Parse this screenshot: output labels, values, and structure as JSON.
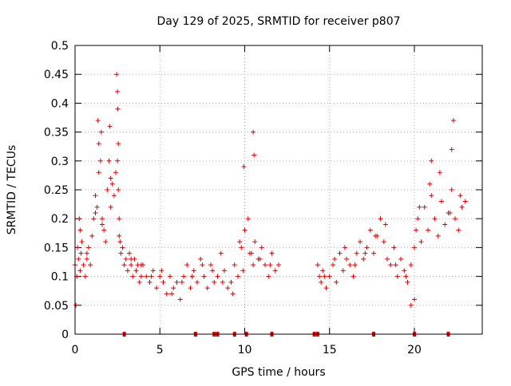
{
  "chart_data": {
    "type": "scatter",
    "title": "Day 129 of 2025, SRMTID for receiver p807",
    "xlabel": "GPS time / hours",
    "ylabel": "SRMTID / TECUs",
    "xlim": [
      0,
      24
    ],
    "ylim": [
      0,
      0.5
    ],
    "x_ticks": [
      0,
      5,
      10,
      15,
      20
    ],
    "y_ticks": [
      0,
      0.05,
      0.1,
      0.15,
      0.2,
      0.25,
      0.3,
      0.35,
      0.4,
      0.45,
      0.5
    ],
    "x_tick_labels": [
      "0",
      "5",
      "10",
      "15",
      "20"
    ],
    "y_tick_labels": [
      "0",
      "0.05",
      "0.1",
      "0.15",
      "0.2",
      "0.25",
      "0.3",
      "0.35",
      "0.4",
      "0.45",
      "0.5"
    ],
    "grid": true,
    "marker": "+",
    "color": "#e00000",
    "data_gaps_hours": [
      [
        12.0,
        14.3
      ]
    ],
    "points_x": [
      0.0,
      0.05,
      0.1,
      0.15,
      0.2,
      0.25,
      0.3,
      0.35,
      0.4,
      0.5,
      0.6,
      0.7,
      0.8,
      0.9,
      1.0,
      1.1,
      1.2,
      1.3,
      1.4,
      1.5,
      1.55,
      1.6,
      1.7,
      1.8,
      1.9,
      2.0,
      2.05,
      2.1,
      2.2,
      2.3,
      2.4,
      2.5,
      2.55,
      2.6,
      2.65,
      2.7,
      2.8,
      2.9,
      3.0,
      3.1,
      3.2,
      3.3,
      3.4,
      3.5,
      3.6,
      3.7,
      3.8,
      3.9,
      4.0,
      4.2,
      4.4,
      4.6,
      4.8,
      5.0,
      5.2,
      5.4,
      5.6,
      5.8,
      6.0,
      6.2,
      6.4,
      6.6,
      6.8,
      7.0,
      7.2,
      7.4,
      7.6,
      7.8,
      8.0,
      8.2,
      8.4,
      8.6,
      8.8,
      9.0,
      9.2,
      9.4,
      9.6,
      9.8,
      9.9,
      10.0,
      10.2,
      10.4,
      10.5,
      10.6,
      10.8,
      11.0,
      11.2,
      11.4,
      11.6,
      11.8,
      12.0,
      14.3,
      14.4,
      14.5,
      14.6,
      14.8,
      15.0,
      15.2,
      15.4,
      15.6,
      15.8,
      16.0,
      16.2,
      16.4,
      16.6,
      16.8,
      17.0,
      17.2,
      17.4,
      17.6,
      17.8,
      18.0,
      18.2,
      18.4,
      18.6,
      18.8,
      19.0,
      19.2,
      19.4,
      19.6,
      19.8,
      20.0,
      20.1,
      20.2,
      20.4,
      20.6,
      20.8,
      21.0,
      21.2,
      21.4,
      21.6,
      21.8,
      22.0,
      22.2,
      22.4,
      22.6,
      22.8,
      23.0,
      0.3,
      0.7,
      1.2,
      1.6,
      2.1,
      2.6,
      3.3,
      3.9,
      4.5,
      5.1,
      5.7,
      6.3,
      6.9,
      7.5,
      8.1,
      8.7,
      9.3,
      9.7,
      10.3,
      10.9,
      11.5,
      14.7,
      15.3,
      15.9,
      16.5,
      17.1,
      17.7,
      18.3,
      18.9,
      19.5,
      20.3,
      20.9,
      21.5,
      22.1,
      22.7,
      2.45,
      2.5,
      2.52,
      2.55,
      1.35,
      1.4,
      9.95,
      10.5,
      10.55,
      21.0,
      22.2,
      22.3,
      20.0,
      19.8
    ],
    "points_y": [
      0.12,
      0.05,
      0.1,
      0.15,
      0.13,
      0.2,
      0.18,
      0.14,
      0.16,
      0.12,
      0.1,
      0.13,
      0.15,
      0.12,
      0.17,
      0.2,
      0.24,
      0.22,
      0.28,
      0.3,
      0.35,
      0.2,
      0.18,
      0.16,
      0.25,
      0.3,
      0.36,
      0.22,
      0.26,
      0.24,
      0.28,
      0.3,
      0.25,
      0.2,
      0.16,
      0.14,
      0.15,
      0.12,
      0.13,
      0.11,
      0.14,
      0.12,
      0.1,
      0.13,
      0.11,
      0.12,
      0.09,
      0.1,
      0.12,
      0.1,
      0.09,
      0.11,
      0.08,
      0.1,
      0.09,
      0.07,
      0.1,
      0.08,
      0.09,
      0.06,
      0.1,
      0.12,
      0.08,
      0.11,
      0.09,
      0.13,
      0.1,
      0.08,
      0.12,
      0.09,
      0.1,
      0.14,
      0.11,
      0.08,
      0.09,
      0.12,
      0.1,
      0.15,
      0.11,
      0.18,
      0.2,
      0.14,
      0.12,
      0.16,
      0.13,
      0.15,
      0.12,
      0.1,
      0.14,
      0.11,
      0.12,
      0.12,
      0.1,
      0.09,
      0.11,
      0.08,
      0.1,
      0.12,
      0.09,
      0.14,
      0.11,
      0.13,
      0.12,
      0.1,
      0.14,
      0.16,
      0.13,
      0.15,
      0.18,
      0.14,
      0.17,
      0.2,
      0.16,
      0.13,
      0.12,
      0.15,
      0.1,
      0.13,
      0.11,
      0.09,
      0.12,
      0.15,
      0.18,
      0.2,
      0.16,
      0.22,
      0.18,
      0.24,
      0.2,
      0.17,
      0.23,
      0.19,
      0.21,
      0.25,
      0.2,
      0.18,
      0.22,
      0.23,
      0.11,
      0.14,
      0.21,
      0.19,
      0.27,
      0.17,
      0.13,
      0.12,
      0.1,
      0.11,
      0.07,
      0.09,
      0.1,
      0.12,
      0.11,
      0.09,
      0.07,
      0.16,
      0.14,
      0.13,
      0.12,
      0.1,
      0.13,
      0.15,
      0.12,
      0.14,
      0.17,
      0.19,
      0.12,
      0.1,
      0.22,
      0.26,
      0.28,
      0.21,
      0.24,
      0.45,
      0.42,
      0.39,
      0.33,
      0.37,
      0.33,
      0.29,
      0.35,
      0.31,
      0.3,
      0.32,
      0.37,
      0.06,
      0.05
    ],
    "rug_x": [
      2.9,
      7.1,
      8.2,
      8.4,
      9.4,
      10.1,
      11.6,
      14.1,
      14.3,
      17.6,
      20.0,
      22.0
    ]
  }
}
